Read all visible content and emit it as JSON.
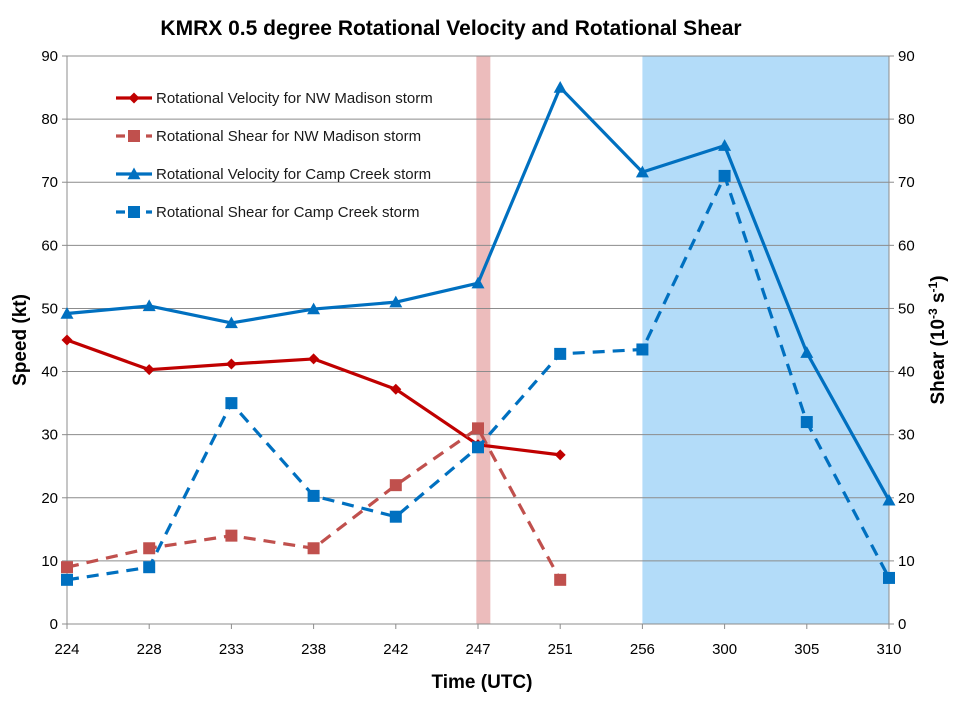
{
  "chart_data": {
    "type": "line",
    "title": "KMRX 0.5 degree Rotational Velocity and Rotational Shear",
    "xlabel": "Time (UTC)",
    "ylabel": "Speed (kt)",
    "y2label_prefix": "Shear (10",
    "y2label_exp1": "-3",
    "y2label_mid": " s",
    "y2label_exp2": "-1",
    "y2label_suffix": ")",
    "categories": [
      "224",
      "228",
      "233",
      "238",
      "242",
      "247",
      "251",
      "256",
      "300",
      "305",
      "310"
    ],
    "ylim": [
      0,
      90
    ],
    "y2lim": [
      0,
      90
    ],
    "yticks": [
      0,
      10,
      20,
      30,
      40,
      50,
      60,
      70,
      80,
      90
    ],
    "grid": true,
    "legend_position": "top-left",
    "highlights": [
      {
        "from": 4.98,
        "to": 5.15,
        "color": "#ecbcbc"
      },
      {
        "from": 7.0,
        "to": 10.0,
        "color": "#b3dcf9"
      }
    ],
    "series": [
      {
        "name": "Rotational Velocity for NW Madison storm",
        "color": "#c00000",
        "dash": false,
        "marker": "diamond",
        "values": [
          45,
          40.3,
          41.2,
          42,
          37.2,
          28.4,
          26.8,
          null,
          null,
          null,
          null
        ]
      },
      {
        "name": "Rotational Shear for NW Madison storm",
        "color": "#c0504d",
        "dash": true,
        "marker": "square",
        "values": [
          9,
          12,
          14,
          12,
          22,
          31,
          7,
          null,
          null,
          null,
          null
        ]
      },
      {
        "name": "Rotational Velocity for Camp Creek storm",
        "color": "#0070c0",
        "dash": false,
        "marker": "triangle",
        "values": [
          49.2,
          50.4,
          47.7,
          49.9,
          51,
          54,
          85,
          71.6,
          75.8,
          43,
          19.6
        ]
      },
      {
        "name": "Rotational Shear for Camp Creek storm",
        "color": "#0070c0",
        "dash": true,
        "marker": "square",
        "values": [
          7,
          9,
          35,
          20.3,
          17,
          28,
          42.8,
          43.5,
          71,
          32,
          7.3
        ]
      }
    ]
  }
}
